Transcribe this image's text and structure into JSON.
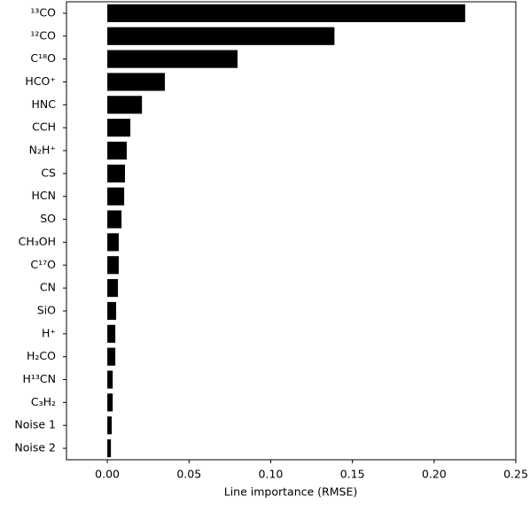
{
  "chart_data": {
    "type": "barh",
    "xlabel": "Line importance (RMSE)",
    "categories": [
      "¹³CO",
      "¹²CO",
      "C¹⁸O",
      "HCO⁺",
      "HNC",
      "CCH",
      "N₂H⁺",
      "CS",
      "HCN",
      "SO",
      "CH₃OH",
      "C¹⁷O",
      "CN",
      "SiO",
      "H⁺",
      "H₂CO",
      "H¹³CN",
      "C₃H₂",
      "Noise 1",
      "Noise 2"
    ],
    "values": [
      0.219,
      0.139,
      0.0797,
      0.0352,
      0.0212,
      0.0141,
      0.0119,
      0.0108,
      0.0103,
      0.0087,
      0.007,
      0.007,
      0.0065,
      0.0054,
      0.0049,
      0.0049,
      0.0033,
      0.0033,
      0.0027,
      0.0022
    ],
    "color": "#000000",
    "xlim": [
      -0.025,
      0.25
    ],
    "xticks": [
      {
        "value": 0,
        "label": "0.00"
      },
      {
        "value": 0.05,
        "label": "0.05"
      },
      {
        "value": 0.1,
        "label": "0.10"
      },
      {
        "value": 0.15,
        "label": "0.15"
      },
      {
        "value": 0.2,
        "label": "0.20"
      },
      {
        "value": 0.25,
        "label": "0.25"
      }
    ]
  }
}
